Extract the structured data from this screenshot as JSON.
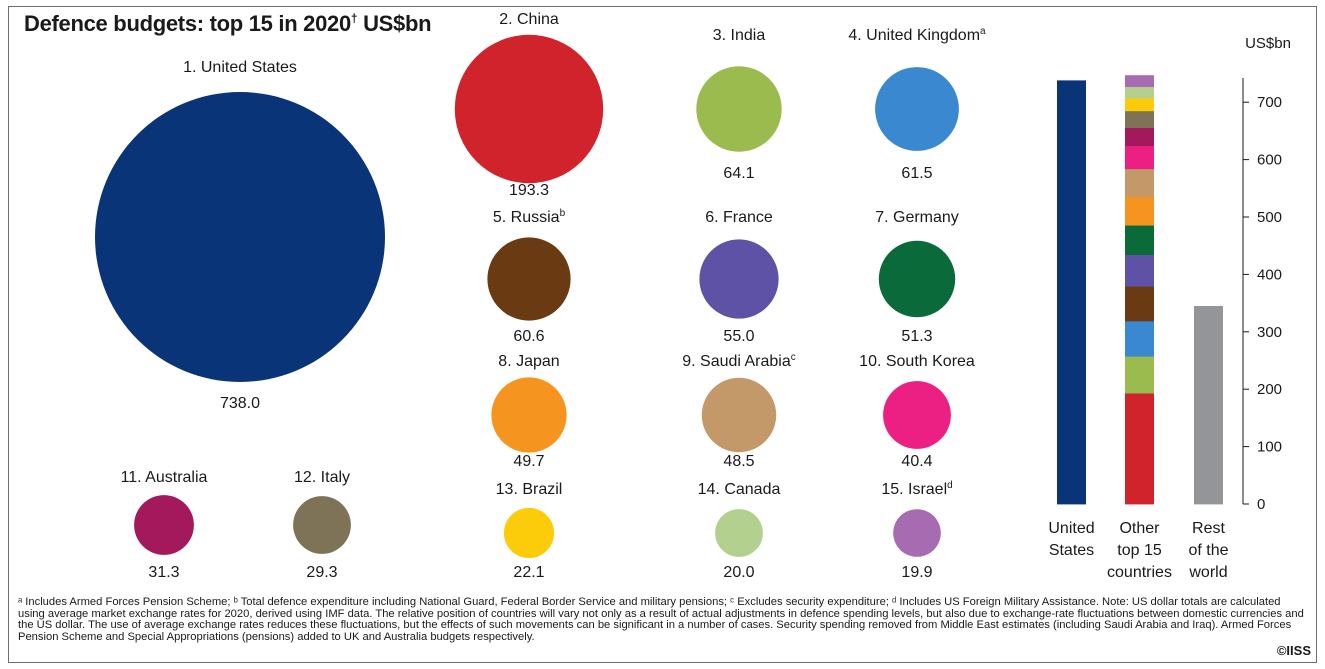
{
  "chart_data": [
    {
      "type": "bubble",
      "title": "Defence budgets: top 15 in 2020",
      "title_marker": "†",
      "title_unit": "US$bn",
      "items": [
        {
          "label": "1. United States",
          "sup": "",
          "value": 738.0,
          "display": "738.0",
          "color": "#0a3478"
        },
        {
          "label": "2. China",
          "sup": "",
          "value": 193.3,
          "display": "193.3",
          "color": "#d1232b"
        },
        {
          "label": "3. India",
          "sup": "",
          "value": 64.1,
          "display": "64.1",
          "color": "#9bbb4f"
        },
        {
          "label": "4. United Kingdom",
          "sup": "a",
          "value": 61.5,
          "display": "61.5",
          "color": "#3a88cf"
        },
        {
          "label": "5. Russia",
          "sup": "b",
          "value": 60.6,
          "display": "60.6",
          "color": "#6a3b13"
        },
        {
          "label": "6. France",
          "sup": "",
          "value": 55.0,
          "display": "55.0",
          "color": "#5e52a6"
        },
        {
          "label": "7. Germany",
          "sup": "",
          "value": 51.3,
          "display": "51.3",
          "color": "#0a6a3a"
        },
        {
          "label": "8. Japan",
          "sup": "",
          "value": 49.7,
          "display": "49.7",
          "color": "#f5941f"
        },
        {
          "label": "9. Saudi Arabia",
          "sup": "c",
          "value": 48.5,
          "display": "48.5",
          "color": "#c4996a"
        },
        {
          "label": "10. South Korea",
          "sup": "",
          "value": 40.4,
          "display": "40.4",
          "color": "#ec1f82"
        },
        {
          "label": "11. Australia",
          "sup": "",
          "value": 31.3,
          "display": "31.3",
          "color": "#a3195b"
        },
        {
          "label": "12. Italy",
          "sup": "",
          "value": 29.3,
          "display": "29.3",
          "color": "#7e7257"
        },
        {
          "label": "13. Brazil",
          "sup": "",
          "value": 22.1,
          "display": "22.1",
          "color": "#fccb0a"
        },
        {
          "label": "14. Canada",
          "sup": "",
          "value": 20.0,
          "display": "20.0",
          "color": "#b4d08f"
        },
        {
          "label": "15. Israel",
          "sup": "d",
          "value": 19.9,
          "display": "19.9",
          "color": "#a66bb1"
        }
      ]
    },
    {
      "type": "stacked-bar",
      "ylabel": "US$bn",
      "ylim": [
        0,
        750
      ],
      "yticks": [
        0,
        100,
        200,
        300,
        400,
        500,
        600,
        700
      ],
      "categories": [
        {
          "lines": [
            "United",
            "States"
          ]
        },
        {
          "lines": [
            "Other",
            "top 15",
            "countries"
          ]
        },
        {
          "lines": [
            "Rest",
            "of the",
            "world"
          ]
        }
      ],
      "bars": [
        {
          "segments": [
            {
              "value": 738.0,
              "color": "#0a3478"
            }
          ]
        },
        {
          "segments": [
            {
              "value": 193.3,
              "color": "#d1232b"
            },
            {
              "value": 64.1,
              "color": "#9bbb4f"
            },
            {
              "value": 61.5,
              "color": "#3a88cf"
            },
            {
              "value": 60.6,
              "color": "#6a3b13"
            },
            {
              "value": 55.0,
              "color": "#5e52a6"
            },
            {
              "value": 51.3,
              "color": "#0a6a3a"
            },
            {
              "value": 49.7,
              "color": "#f5941f"
            },
            {
              "value": 48.5,
              "color": "#c4996a"
            },
            {
              "value": 40.4,
              "color": "#ec1f82"
            },
            {
              "value": 31.3,
              "color": "#a3195b"
            },
            {
              "value": 29.3,
              "color": "#7e7257"
            },
            {
              "value": 22.1,
              "color": "#fccb0a"
            },
            {
              "value": 20.0,
              "color": "#b4d08f"
            },
            {
              "value": 19.9,
              "color": "#a66bb1"
            }
          ]
        },
        {
          "segments": [
            {
              "value": 345,
              "color": "#939598"
            }
          ]
        }
      ]
    }
  ],
  "footnote": "ᵃ Includes Armed Forces Pension Scheme; ᵇ Total defence expenditure including National Guard, Federal Border Service and military pensions; ᶜ Excludes security expenditure; ᵈ Includes US Foreign Military Assistance. Note: US dollar totals are calculated using average market exchange rates for 2020, derived using IMF data. The relative position of countries will vary not only as a result of actual adjustments in defence spending levels, but also due to exchange-rate fluctuations between domestic currencies and the US dollar. The use of average exchange rates reduces these fluctuations, but the effects of such movements can be significant in a number of cases. Security spending removed from Middle East estimates (including Saudi Arabia and Iraq). Armed Forces Pension Scheme and Special Appropriations (pensions) added to UK and Australia budgets respectively.",
  "copyright": "©IISS"
}
